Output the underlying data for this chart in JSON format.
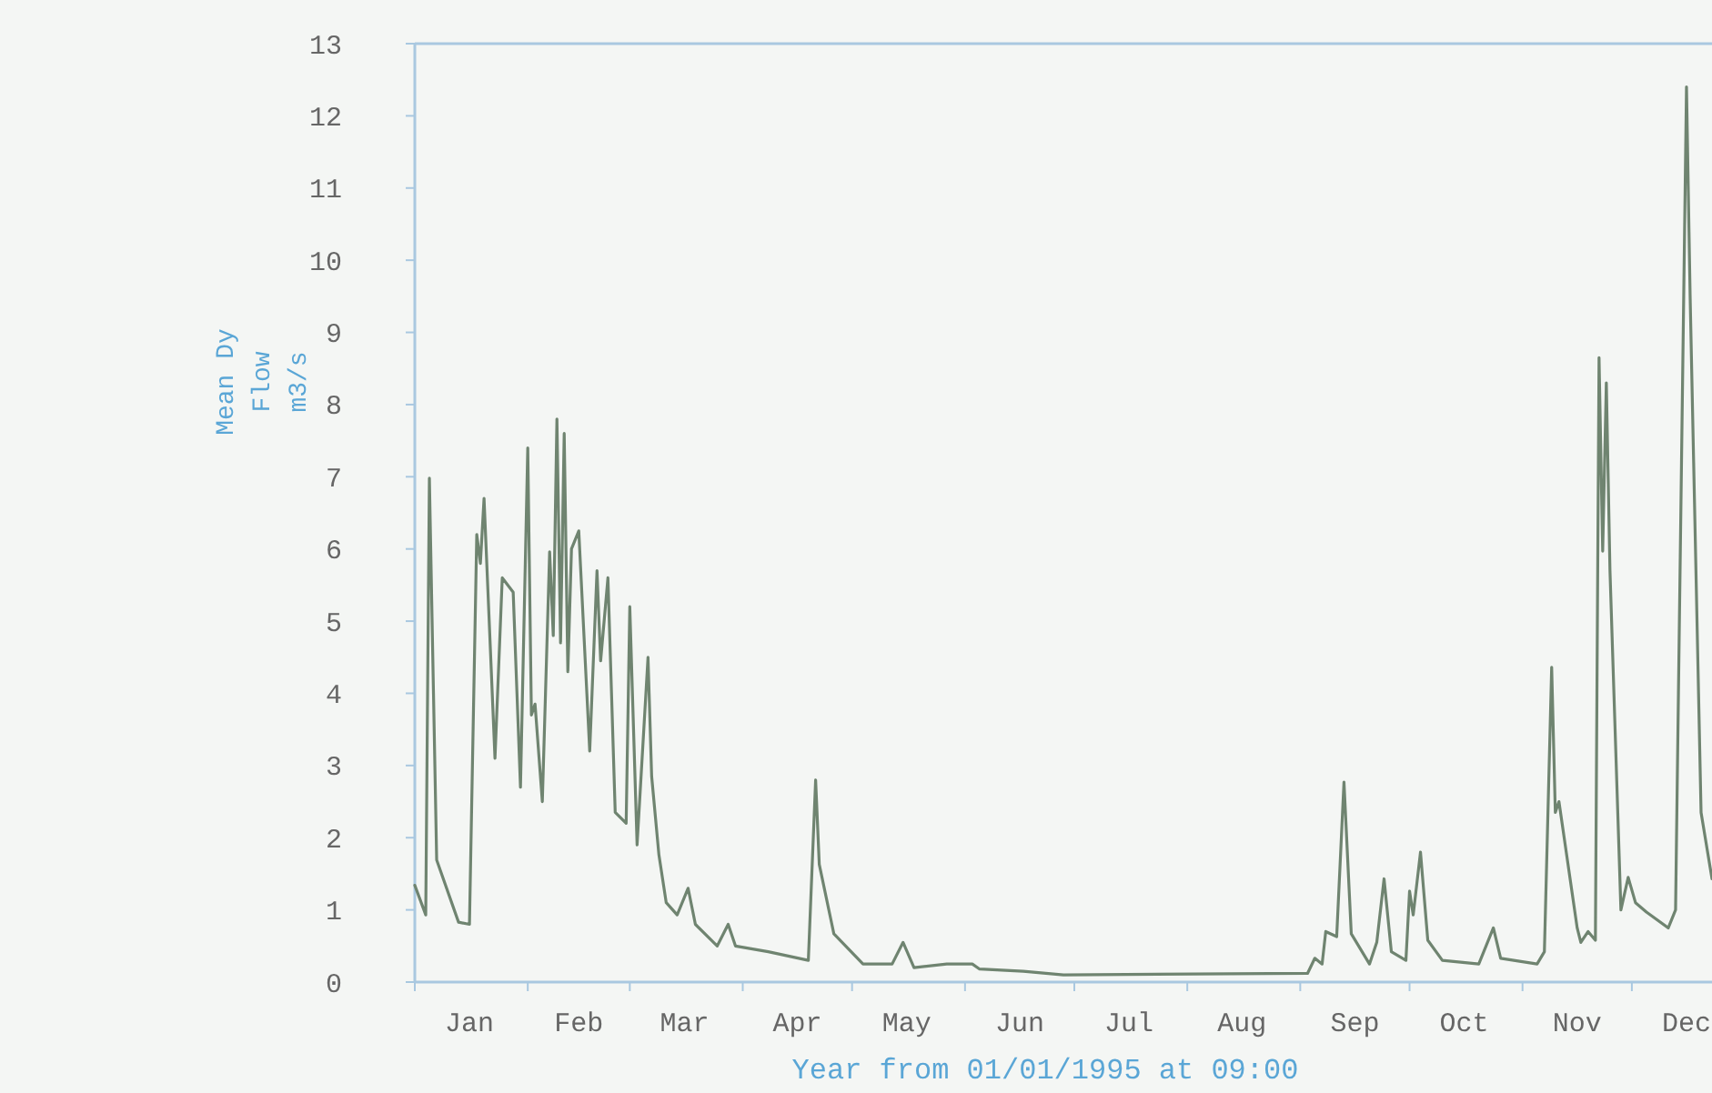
{
  "chart_data": {
    "type": "line",
    "xlabel": "Year from 01/01/1995 at 09:00",
    "ylabel": "Mean Dy\nFlow\nm3/s",
    "x": [
      "1995-01-01",
      "1995-01-04",
      "1995-01-05",
      "1995-01-07",
      "1995-01-13",
      "1995-01-16",
      "1995-01-18",
      "1995-01-19",
      "1995-01-20",
      "1995-01-23",
      "1995-01-25",
      "1995-01-28",
      "1995-01-30",
      "1995-02-01",
      "1995-02-02",
      "1995-02-03",
      "1995-02-05",
      "1995-02-07",
      "1995-02-08",
      "1995-02-09",
      "1995-02-10",
      "1995-02-11",
      "1995-02-12",
      "1995-02-13",
      "1995-02-15",
      "1995-02-18",
      "1995-02-20",
      "1995-02-21",
      "1995-02-23",
      "1995-02-25",
      "1995-02-28",
      "1995-03-01",
      "1995-03-03",
      "1995-03-06",
      "1995-03-07",
      "1995-03-09",
      "1995-03-11",
      "1995-03-14",
      "1995-03-17",
      "1995-03-19",
      "1995-03-25",
      "1995-03-28",
      "1995-03-30",
      "1995-04-08",
      "1995-04-19",
      "1995-04-21",
      "1995-04-22",
      "1995-04-26",
      "1995-05-04",
      "1995-05-12",
      "1995-05-15",
      "1995-05-18",
      "1995-05-27",
      "1995-06-03",
      "1995-06-05",
      "1995-06-17",
      "1995-06-28",
      "1995-09-03",
      "1995-09-05",
      "1995-09-07",
      "1995-09-08",
      "1995-09-11",
      "1995-09-13",
      "1995-09-15",
      "1995-09-20",
      "1995-09-22",
      "1995-09-24",
      "1995-09-26",
      "1995-09-30",
      "1995-10-01",
      "1995-10-02",
      "1995-10-04",
      "1995-10-06",
      "1995-10-10",
      "1995-10-20",
      "1995-10-24",
      "1995-10-26",
      "1995-11-05",
      "1995-11-07",
      "1995-11-09",
      "1995-11-10",
      "1995-11-11",
      "1995-11-16",
      "1995-11-17",
      "1995-11-19",
      "1995-11-21",
      "1995-11-22",
      "1995-11-23",
      "1995-11-24",
      "1995-11-25",
      "1995-11-28",
      "1995-11-30",
      "1995-12-02",
      "1995-12-05",
      "1995-12-11",
      "1995-12-13",
      "1995-12-16",
      "1995-12-17",
      "1995-12-20",
      "1995-12-23"
    ],
    "series": [
      {
        "color": "#6f8470",
        "values": [
          1.34,
          0.93,
          6.98,
          1.69,
          0.83,
          0.8,
          6.2,
          5.8,
          6.7,
          3.1,
          5.6,
          5.4,
          2.7,
          7.4,
          3.7,
          3.85,
          2.5,
          5.96,
          4.8,
          7.8,
          4.7,
          7.6,
          4.3,
          6.0,
          6.25,
          3.2,
          5.7,
          4.45,
          5.6,
          2.35,
          2.2,
          5.2,
          1.9,
          4.5,
          2.85,
          1.76,
          1.1,
          0.93,
          1.3,
          0.8,
          0.5,
          0.8,
          0.5,
          0.42,
          0.3,
          2.8,
          1.63,
          0.67,
          0.25,
          0.25,
          0.55,
          0.2,
          0.25,
          0.25,
          0.18,
          0.15,
          0.1,
          0.12,
          0.33,
          0.25,
          0.7,
          0.63,
          2.77,
          0.67,
          0.25,
          0.55,
          1.43,
          0.42,
          0.3,
          1.26,
          0.93,
          1.8,
          0.58,
          0.3,
          0.25,
          0.75,
          0.33,
          0.25,
          0.42,
          4.36,
          2.35,
          2.5,
          0.75,
          0.55,
          0.7,
          0.58,
          8.65,
          5.97,
          8.3,
          5.7,
          1.0,
          1.45,
          1.1,
          0.97,
          0.75,
          1.0,
          12.4,
          9.5,
          2.35,
          1.43
        ]
      }
    ],
    "xlim": [
      "1995-01-01",
      "1995-12-23"
    ],
    "xticks": [
      {
        "value": "1995-01-01",
        "label": null
      },
      {
        "value": "1995-01-16",
        "label": "Jan"
      },
      {
        "value": "1995-02-01",
        "label": null
      },
      {
        "value": "1995-02-15",
        "label": "Feb"
      },
      {
        "value": "1995-03-01",
        "label": null
      },
      {
        "value": "1995-03-16",
        "label": "Mar"
      },
      {
        "value": "1995-04-01",
        "label": null
      },
      {
        "value": "1995-04-16",
        "label": "Apr"
      },
      {
        "value": "1995-05-01",
        "label": null
      },
      {
        "value": "1995-05-16",
        "label": "May"
      },
      {
        "value": "1995-06-01",
        "label": null
      },
      {
        "value": "1995-06-16",
        "label": "Jun"
      },
      {
        "value": "1995-07-01",
        "label": null
      },
      {
        "value": "1995-07-16",
        "label": "Jul"
      },
      {
        "value": "1995-08-01",
        "label": null
      },
      {
        "value": "1995-08-16",
        "label": "Aug"
      },
      {
        "value": "1995-09-01",
        "label": null
      },
      {
        "value": "1995-09-16",
        "label": "Sep"
      },
      {
        "value": "1995-10-01",
        "label": null
      },
      {
        "value": "1995-10-16",
        "label": "Oct"
      },
      {
        "value": "1995-11-01",
        "label": null
      },
      {
        "value": "1995-11-16",
        "label": "Nov"
      },
      {
        "value": "1995-12-01",
        "label": null
      },
      {
        "value": "1995-12-16",
        "label": "Dec"
      }
    ],
    "ylim": [
      0,
      13
    ],
    "yticks": [
      0,
      1,
      2,
      3,
      4,
      5,
      6,
      7,
      8,
      9,
      10,
      11,
      12,
      13
    ],
    "marker": "none",
    "line_style": "solid"
  }
}
